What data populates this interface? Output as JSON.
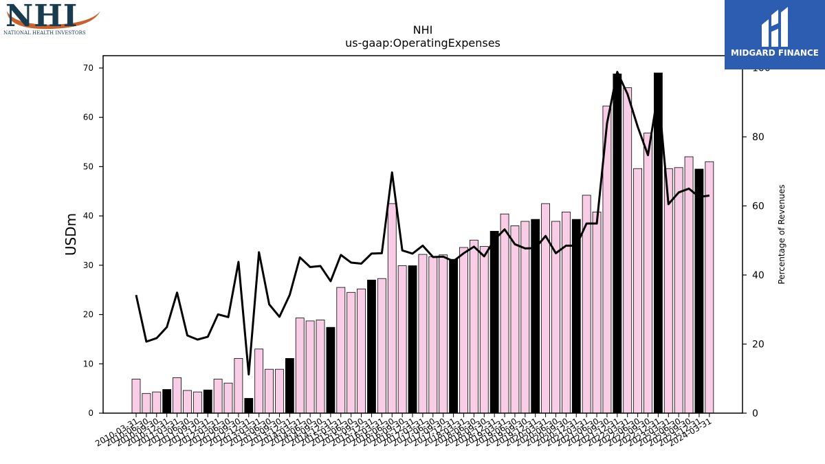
{
  "logos": {
    "left_main": "NHI",
    "left_sub": "NATIONAL HEALTH INVESTORS",
    "right_text": "MIDGARD FINANCE"
  },
  "colors": {
    "bar_default": "#f9cde6",
    "bar_highlight": "#000000",
    "line": "#000000",
    "brand_blue": "#2d5db0",
    "nhi_navy": "#173b4f",
    "nhi_orange": "#c8612b"
  },
  "chart_data": {
    "type": "bar",
    "title": "NHI",
    "subtitle": "us-gaap:OperatingExpenses",
    "ylabel": "USDm",
    "y2label": "Percentage of Revenues",
    "ylim": [
      0,
      72.5
    ],
    "y2lim": [
      0,
      103.5
    ],
    "yticks": [
      0,
      10,
      20,
      30,
      40,
      50,
      60,
      70
    ],
    "y2ticks": [
      0,
      20,
      40,
      60,
      80,
      100
    ],
    "categories": [
      "2010-03-31",
      "2010-06-30",
      "2010-09-30",
      "2010-12-31",
      "2011-03-31",
      "2011-06-30",
      "2011-09-30",
      "2011-12-31",
      "2012-03-31",
      "2012-06-30",
      "2012-09-30",
      "2012-12-31",
      "2013-03-31",
      "2013-06-30",
      "2013-09-30",
      "2013-12-31",
      "2014-03-31",
      "2014-06-30",
      "2014-09-30",
      "2014-12-31",
      "2015-03-31",
      "2015-06-30",
      "2015-09-30",
      "2015-12-31",
      "2016-03-31",
      "2016-06-30",
      "2016-09-30",
      "2016-12-31",
      "2017-03-31",
      "2017-06-30",
      "2017-09-30",
      "2017-12-31",
      "2018-03-31",
      "2018-06-30",
      "2018-09-30",
      "2018-12-31",
      "2019-03-31",
      "2019-06-30",
      "2019-09-30",
      "2019-12-31",
      "2020-03-31",
      "2020-06-30",
      "2020-09-30",
      "2020-12-31",
      "2021-03-31",
      "2021-06-30",
      "2021-09-30",
      "2021-12-31",
      "2022-03-31",
      "2022-06-30",
      "2022-09-30",
      "2022-12-31",
      "2023-03-31",
      "2023-06-30",
      "2023-09-30",
      "2023-12-31",
      "2024-03-31"
    ],
    "series": [
      {
        "kind": "bar",
        "axis": "left",
        "values": [
          6.9,
          4.0,
          4.3,
          4.8,
          7.2,
          4.6,
          4.3,
          4.7,
          6.9,
          6.1,
          11.1,
          3.0,
          13.0,
          8.9,
          8.9,
          11.1,
          19.3,
          18.7,
          18.9,
          17.4,
          25.5,
          24.5,
          25.2,
          27.0,
          27.3,
          42.5,
          29.9,
          29.9,
          32.2,
          31.7,
          32.1,
          31.2,
          33.6,
          35.1,
          33.8,
          36.9,
          40.4,
          38.0,
          38.9,
          39.3,
          42.5,
          38.9,
          40.8,
          39.3,
          44.2,
          40.8,
          62.3,
          68.8,
          66.0,
          49.6,
          56.8,
          69.0,
          49.6,
          49.8,
          52.0,
          49.5,
          51.0
        ],
        "highlight": [
          false,
          false,
          false,
          true,
          false,
          false,
          false,
          true,
          false,
          false,
          false,
          true,
          false,
          false,
          false,
          true,
          false,
          false,
          false,
          true,
          false,
          false,
          false,
          true,
          false,
          false,
          false,
          true,
          false,
          false,
          false,
          true,
          false,
          false,
          false,
          true,
          false,
          false,
          false,
          true,
          false,
          false,
          false,
          true,
          false,
          false,
          false,
          true,
          false,
          false,
          false,
          true,
          false,
          false,
          false,
          true,
          false
        ]
      },
      {
        "kind": "line",
        "axis": "right",
        "values": [
          34.2,
          20.7,
          21.7,
          24.9,
          34.9,
          22.5,
          21.3,
          22.1,
          28.6,
          27.8,
          43.8,
          11.2,
          46.6,
          31.5,
          27.9,
          34.2,
          45.1,
          42.3,
          42.6,
          38.2,
          45.8,
          43.6,
          43.3,
          46.2,
          46.3,
          69.7,
          47.1,
          46.2,
          48.5,
          45.2,
          45.3,
          44.0,
          46.3,
          48.2,
          45.4,
          50.2,
          53.2,
          48.9,
          47.7,
          47.8,
          51.3,
          46.3,
          48.5,
          48.5,
          54.9,
          54.9,
          83.9,
          98.8,
          92.4,
          82.9,
          74.7,
          93.1,
          60.5,
          63.9,
          65.0,
          62.6,
          63.0
        ]
      }
    ]
  }
}
